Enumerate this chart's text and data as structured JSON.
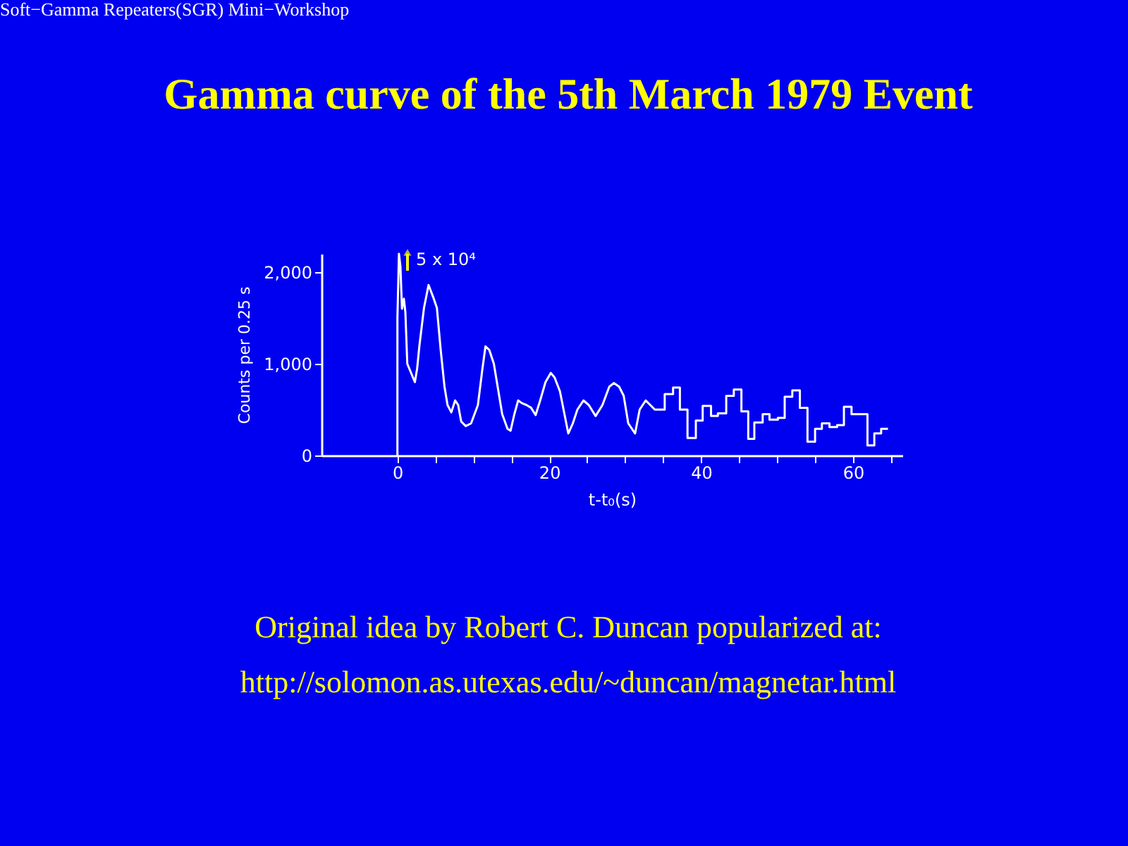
{
  "chart_data": {
    "type": "line",
    "title": "Gamma curve of the 5th March 1979 Event",
    "xlabel": "t-t₀(s)",
    "ylabel": "Counts per 0.25 s",
    "annotations": [
      "Soft−Gamma Repeaters(SGR)  Mini−Workshop",
      "5 x 10⁴",
      "Original idea by Robert C. Duncan popularized at:",
      "http://solomon.as.utexas.edu/~duncan/magnetar.html"
    ],
    "xlim": [
      -10,
      66.5
    ],
    "ylim": [
      0,
      2200
    ],
    "xticks": [
      {
        "value": 0,
        "label": "0"
      },
      {
        "value": 5,
        "label": null
      },
      {
        "value": 10,
        "label": null
      },
      {
        "value": 15,
        "label": null
      },
      {
        "value": 20,
        "label": "20"
      },
      {
        "value": 25,
        "label": null
      },
      {
        "value": 30,
        "label": null
      },
      {
        "value": 35,
        "label": null
      },
      {
        "value": 40,
        "label": "40"
      },
      {
        "value": 45,
        "label": null
      },
      {
        "value": 50,
        "label": null
      },
      {
        "value": 55,
        "label": null
      },
      {
        "value": 60,
        "label": "60"
      },
      {
        "value": 65,
        "label": null
      }
    ],
    "yticks": [
      {
        "value": 0,
        "label": "0"
      },
      {
        "value": 1000,
        "label": "1,000"
      },
      {
        "value": 2000,
        "label": "2,000"
      }
    ],
    "grid": false,
    "marker": "none",
    "line_style": "solid",
    "series": [
      {
        "color": "#ffffff",
        "x": [
          0,
          0,
          0.2,
          0.4,
          0.6,
          0.85,
          1.05,
          1.3,
          1.8,
          2.3,
          2.6,
          2.9,
          3.5,
          4.1,
          4.7,
          5.2,
          5.7,
          6.2,
          6.6,
          7.1,
          7.6,
          8.0,
          8.4,
          9.0,
          9.7,
          10.6,
          11.2,
          11.6,
          12.1,
          12.7,
          13.2,
          13.8,
          14.5,
          14.9,
          15.4,
          15.9,
          16.4,
          17.0,
          17.6,
          18.2,
          18.8,
          19.5,
          20.2,
          20.7,
          21.4,
          22.0,
          22.5,
          23.1,
          23.7,
          24.5,
          25.2,
          26.1,
          27.0,
          27.9,
          28.5,
          29.2,
          29.8,
          30.4,
          31.3,
          31.9,
          32.7,
          33.3,
          33.9,
          35.2,
          35.2,
          36.3,
          36.3,
          37.2,
          37.2,
          38.2,
          38.2,
          39.3,
          39.3,
          40.2,
          40.2,
          41.3,
          41.3,
          42.2,
          42.2,
          43.3,
          43.3,
          44.3,
          44.3,
          45.3,
          45.3,
          46.2,
          46.2,
          47.0,
          47.0,
          48.1,
          48.1,
          49.0,
          49.0,
          50.1,
          50.1,
          51.0,
          51.0,
          52.0,
          52.0,
          53.0,
          53.0,
          54.0,
          54.0,
          55.0,
          55.0,
          55.9,
          55.9,
          56.9,
          56.9,
          57.9,
          57.9,
          58.8,
          58.8,
          59.8,
          59.8,
          61.9,
          61.9,
          62.8,
          62.8,
          63.7,
          63.7,
          64.6
        ],
        "values": [
          0,
          1500,
          2200,
          2060,
          1600,
          1710,
          1560,
          1000,
          900,
          800,
          950,
          1200,
          1610,
          1860,
          1730,
          1610,
          1150,
          750,
          550,
          470,
          600,
          550,
          370,
          320,
          350,
          550,
          950,
          1190,
          1150,
          1000,
          750,
          450,
          290,
          270,
          450,
          600,
          570,
          550,
          520,
          440,
          600,
          800,
          900,
          850,
          700,
          450,
          240,
          350,
          500,
          600,
          550,
          430,
          550,
          750,
          790,
          750,
          650,
          350,
          240,
          500,
          600,
          550,
          500,
          500,
          670,
          670,
          740,
          740,
          500,
          500,
          190,
          190,
          380,
          380,
          540,
          540,
          430,
          430,
          460,
          460,
          650,
          650,
          720,
          720,
          480,
          480,
          180,
          180,
          360,
          360,
          450,
          450,
          390,
          390,
          410,
          410,
          640,
          640,
          710,
          710,
          520,
          520,
          150,
          150,
          290,
          290,
          350,
          350,
          310,
          310,
          330,
          330,
          530,
          530,
          450,
          450,
          110,
          110,
          240,
          240,
          290,
          290
        ]
      }
    ]
  }
}
